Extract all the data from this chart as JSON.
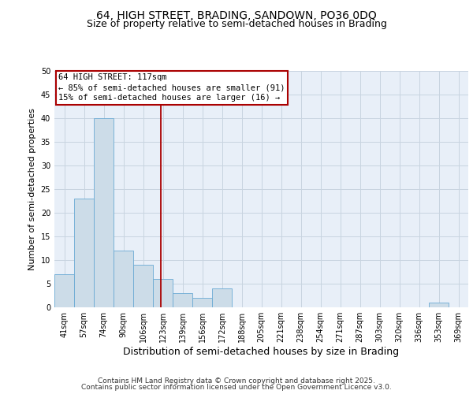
{
  "title": "64, HIGH STREET, BRADING, SANDOWN, PO36 0DQ",
  "subtitle": "Size of property relative to semi-detached houses in Brading",
  "xlabel": "Distribution of semi-detached houses by size in Brading",
  "ylabel": "Number of semi-detached properties",
  "categories": [
    "41sqm",
    "57sqm",
    "74sqm",
    "90sqm",
    "106sqm",
    "123sqm",
    "139sqm",
    "156sqm",
    "172sqm",
    "188sqm",
    "205sqm",
    "221sqm",
    "238sqm",
    "254sqm",
    "271sqm",
    "287sqm",
    "303sqm",
    "320sqm",
    "336sqm",
    "353sqm",
    "369sqm"
  ],
  "values": [
    7,
    23,
    40,
    12,
    9,
    6,
    3,
    2,
    4,
    0,
    0,
    0,
    0,
    0,
    0,
    0,
    0,
    0,
    0,
    1,
    0
  ],
  "bar_color": "#ccdce8",
  "bar_edge_color": "#6aaad4",
  "grid_color": "#c8d4e0",
  "background_color": "#e8eff8",
  "vline_x": 4.88,
  "vline_color": "#aa0000",
  "annotation_text": "64 HIGH STREET: 117sqm\n← 85% of semi-detached houses are smaller (91)\n15% of semi-detached houses are larger (16) →",
  "annotation_box_color": "#aa0000",
  "ylim": [
    0,
    50
  ],
  "yticks": [
    0,
    5,
    10,
    15,
    20,
    25,
    30,
    35,
    40,
    45,
    50
  ],
  "footer_line1": "Contains HM Land Registry data © Crown copyright and database right 2025.",
  "footer_line2": "Contains public sector information licensed under the Open Government Licence v3.0.",
  "title_fontsize": 10,
  "subtitle_fontsize": 9,
  "xlabel_fontsize": 9,
  "ylabel_fontsize": 8,
  "tick_fontsize": 7,
  "annotation_fontsize": 7.5,
  "footer_fontsize": 6.5
}
